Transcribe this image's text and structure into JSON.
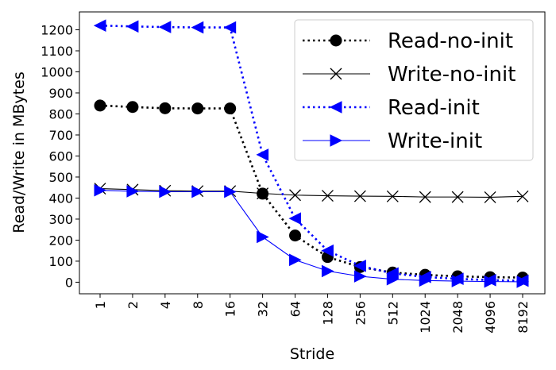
{
  "chart_data": {
    "type": "line",
    "categories": [
      "1",
      "2",
      "4",
      "8",
      "16",
      "32",
      "64",
      "128",
      "256",
      "512",
      "1024",
      "2048",
      "4096",
      "8192"
    ],
    "xlabel": "Stride",
    "ylabel": "Read/Write in MBytes",
    "ylim": [
      -55,
      1285
    ],
    "yticks": [
      0,
      100,
      200,
      300,
      400,
      500,
      600,
      700,
      800,
      900,
      1000,
      1100,
      1200
    ],
    "grid": false,
    "legend_position": "top-right",
    "series": [
      {
        "name": "Read-no-init",
        "color": "#000000",
        "line_style": "dotted",
        "marker": "circle",
        "values": [
          840,
          833,
          827,
          826,
          826,
          421,
          222,
          120,
          72,
          46,
          35,
          28,
          24,
          22
        ]
      },
      {
        "name": "Write-no-init",
        "color": "#000000",
        "line_style": "solid",
        "marker": "x",
        "values": [
          445,
          440,
          435,
          433,
          433,
          422,
          414,
          411,
          409,
          408,
          405,
          405,
          404,
          408
        ]
      },
      {
        "name": "Read-init",
        "color": "#0000ff",
        "line_style": "dotted",
        "marker": "triangle-left",
        "values": [
          1220,
          1216,
          1213,
          1211,
          1211,
          606,
          303,
          150,
          78,
          42,
          25,
          16,
          10,
          7
        ]
      },
      {
        "name": "Write-init",
        "color": "#0000ff",
        "line_style": "solid",
        "marker": "triangle-right",
        "values": [
          437,
          432,
          430,
          430,
          430,
          215,
          106,
          53,
          28,
          14,
          8,
          5,
          3,
          2
        ]
      }
    ]
  }
}
